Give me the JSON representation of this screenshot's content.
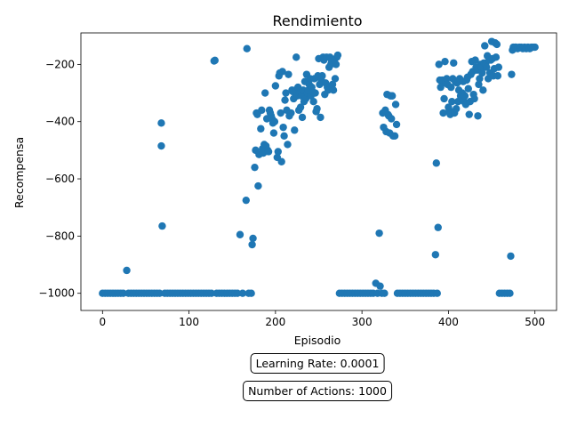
{
  "chart_data": {
    "type": "scatter",
    "title": "Rendimiento",
    "xlabel": "Episodio",
    "ylabel": "Recompensa",
    "xlim": [
      -25,
      525
    ],
    "ylim": [
      -1060,
      -90
    ],
    "xticks": [
      0,
      100,
      200,
      300,
      400,
      500
    ],
    "yticks": [
      -1000,
      -800,
      -600,
      -400,
      -200
    ],
    "grid": false,
    "color": "#1f77b4",
    "series": [
      {
        "name": "",
        "points": [
          [
            0,
            -1000
          ],
          [
            3,
            -1000
          ],
          [
            6,
            -1000
          ],
          [
            9,
            -1000
          ],
          [
            12,
            -1000
          ],
          [
            15,
            -1000
          ],
          [
            18,
            -1000
          ],
          [
            21,
            -1000
          ],
          [
            24,
            -1000
          ],
          [
            28,
            -920
          ],
          [
            30,
            -1000
          ],
          [
            33,
            -1000
          ],
          [
            36,
            -1000
          ],
          [
            39,
            -1000
          ],
          [
            42,
            -1000
          ],
          [
            45,
            -1000
          ],
          [
            48,
            -1000
          ],
          [
            51,
            -1000
          ],
          [
            54,
            -1000
          ],
          [
            57,
            -1000
          ],
          [
            60,
            -1000
          ],
          [
            63,
            -1000
          ],
          [
            66,
            -1000
          ],
          [
            68,
            -405
          ],
          [
            68,
            -485
          ],
          [
            69,
            -765
          ],
          [
            72,
            -1000
          ],
          [
            75,
            -1000
          ],
          [
            78,
            -1000
          ],
          [
            81,
            -1000
          ],
          [
            84,
            -1000
          ],
          [
            87,
            -1000
          ],
          [
            90,
            -1000
          ],
          [
            93,
            -1000
          ],
          [
            96,
            -1000
          ],
          [
            99,
            -1000
          ],
          [
            102,
            -1000
          ],
          [
            105,
            -1000
          ],
          [
            108,
            -1000
          ],
          [
            111,
            -1000
          ],
          [
            114,
            -1000
          ],
          [
            117,
            -1000
          ],
          [
            120,
            -1000
          ],
          [
            123,
            -1000
          ],
          [
            126,
            -1000
          ],
          [
            129,
            -188
          ],
          [
            130,
            -186
          ],
          [
            132,
            -1000
          ],
          [
            135,
            -1000
          ],
          [
            138,
            -1000
          ],
          [
            141,
            -1000
          ],
          [
            144,
            -1000
          ],
          [
            147,
            -1000
          ],
          [
            150,
            -1000
          ],
          [
            153,
            -1000
          ],
          [
            156,
            -1000
          ],
          [
            159,
            -795
          ],
          [
            162,
            -1000
          ],
          [
            166,
            -675
          ],
          [
            167,
            -145
          ],
          [
            169,
            -1000
          ],
          [
            172,
            -1000
          ],
          [
            173,
            -830
          ],
          [
            174,
            -808
          ],
          [
            176,
            -560
          ],
          [
            177,
            -500
          ],
          [
            178,
            -370
          ],
          [
            179,
            -375
          ],
          [
            180,
            -625
          ],
          [
            181,
            -515
          ],
          [
            183,
            -425
          ],
          [
            184,
            -360
          ],
          [
            185,
            -495
          ],
          [
            186,
            -510
          ],
          [
            187,
            -480
          ],
          [
            188,
            -300
          ],
          [
            189,
            -485
          ],
          [
            190,
            -390
          ],
          [
            191,
            -500
          ],
          [
            192,
            -505
          ],
          [
            193,
            -360
          ],
          [
            194,
            -370
          ],
          [
            195,
            -380
          ],
          [
            196,
            -390
          ],
          [
            197,
            -405
          ],
          [
            198,
            -440
          ],
          [
            199,
            -400
          ],
          [
            200,
            -275
          ],
          [
            202,
            -525
          ],
          [
            203,
            -505
          ],
          [
            204,
            -240
          ],
          [
            205,
            -230
          ],
          [
            206,
            -370
          ],
          [
            207,
            -540
          ],
          [
            208,
            -225
          ],
          [
            209,
            -420
          ],
          [
            210,
            -450
          ],
          [
            211,
            -325
          ],
          [
            212,
            -300
          ],
          [
            213,
            -360
          ],
          [
            214,
            -480
          ],
          [
            215,
            -235
          ],
          [
            216,
            -380
          ],
          [
            218,
            -370
          ],
          [
            219,
            -290
          ],
          [
            220,
            -295
          ],
          [
            221,
            -320
          ],
          [
            222,
            -430
          ],
          [
            223,
            -290
          ],
          [
            224,
            -175
          ],
          [
            225,
            -310
          ],
          [
            226,
            -280
          ],
          [
            227,
            -360
          ],
          [
            228,
            -300
          ],
          [
            229,
            -350
          ],
          [
            230,
            -310
          ],
          [
            231,
            -385
          ],
          [
            232,
            -290
          ],
          [
            233,
            -330
          ],
          [
            234,
            -260
          ],
          [
            235,
            -320
          ],
          [
            236,
            -235
          ],
          [
            237,
            -300
          ],
          [
            238,
            -290
          ],
          [
            239,
            -270
          ],
          [
            240,
            -250
          ],
          [
            241,
            -310
          ],
          [
            242,
            -280
          ],
          [
            243,
            -295
          ],
          [
            244,
            -330
          ],
          [
            245,
            -250
          ],
          [
            246,
            -300
          ],
          [
            247,
            -365
          ],
          [
            248,
            -355
          ],
          [
            249,
            -240
          ],
          [
            250,
            -180
          ],
          [
            251,
            -270
          ],
          [
            252,
            -385
          ],
          [
            253,
            -255
          ],
          [
            254,
            -240
          ],
          [
            255,
            -175
          ],
          [
            256,
            -185
          ],
          [
            257,
            -305
          ],
          [
            258,
            -265
          ],
          [
            259,
            -175
          ],
          [
            260,
            -280
          ],
          [
            261,
            -290
          ],
          [
            262,
            -210
          ],
          [
            263,
            -175
          ],
          [
            264,
            -200
          ],
          [
            265,
            -190
          ],
          [
            266,
            -270
          ],
          [
            267,
            -290
          ],
          [
            268,
            -185
          ],
          [
            269,
            -250
          ],
          [
            270,
            -200
          ],
          [
            271,
            -175
          ],
          [
            272,
            -168
          ],
          [
            274,
            -1000
          ],
          [
            277,
            -1000
          ],
          [
            280,
            -1000
          ],
          [
            283,
            -1000
          ],
          [
            286,
            -1000
          ],
          [
            289,
            -1000
          ],
          [
            292,
            -1000
          ],
          [
            295,
            -1000
          ],
          [
            298,
            -1000
          ],
          [
            301,
            -1000
          ],
          [
            304,
            -1000
          ],
          [
            307,
            -1000
          ],
          [
            310,
            -1000
          ],
          [
            313,
            -1000
          ],
          [
            316,
            -965
          ],
          [
            318,
            -1000
          ],
          [
            320,
            -790
          ],
          [
            321,
            -975
          ],
          [
            323,
            -1000
          ],
          [
            324,
            -370
          ],
          [
            325,
            -420
          ],
          [
            326,
            -1000
          ],
          [
            327,
            -360
          ],
          [
            328,
            -435
          ],
          [
            329,
            -305
          ],
          [
            330,
            -375
          ],
          [
            331,
            -380
          ],
          [
            332,
            -440
          ],
          [
            333,
            -310
          ],
          [
            334,
            -390
          ],
          [
            335,
            -310
          ],
          [
            336,
            -450
          ],
          [
            338,
            -450
          ],
          [
            339,
            -340
          ],
          [
            340,
            -410
          ],
          [
            341,
            -1000
          ],
          [
            344,
            -1000
          ],
          [
            347,
            -1000
          ],
          [
            350,
            -1000
          ],
          [
            353,
            -1000
          ],
          [
            356,
            -1000
          ],
          [
            359,
            -1000
          ],
          [
            362,
            -1000
          ],
          [
            365,
            -1000
          ],
          [
            368,
            -1000
          ],
          [
            371,
            -1000
          ],
          [
            374,
            -1000
          ],
          [
            377,
            -1000
          ],
          [
            380,
            -1000
          ],
          [
            383,
            -1000
          ],
          [
            385,
            -865
          ],
          [
            386,
            -545
          ],
          [
            387,
            -1000
          ],
          [
            388,
            -770
          ],
          [
            389,
            -200
          ],
          [
            390,
            -255
          ],
          [
            391,
            -280
          ],
          [
            392,
            -260
          ],
          [
            393,
            -255
          ],
          [
            394,
            -370
          ],
          [
            395,
            -320
          ],
          [
            396,
            -190
          ],
          [
            397,
            -265
          ],
          [
            398,
            -250
          ],
          [
            399,
            -270
          ],
          [
            400,
            -350
          ],
          [
            401,
            -360
          ],
          [
            402,
            -375
          ],
          [
            403,
            -280
          ],
          [
            404,
            -330
          ],
          [
            405,
            -250
          ],
          [
            406,
            -195
          ],
          [
            407,
            -370
          ],
          [
            408,
            -260
          ],
          [
            409,
            -355
          ],
          [
            410,
            -265
          ],
          [
            411,
            -330
          ],
          [
            412,
            -290
          ],
          [
            413,
            -250
          ],
          [
            414,
            -310
          ],
          [
            415,
            -320
          ],
          [
            416,
            -300
          ],
          [
            417,
            -260
          ],
          [
            418,
            -330
          ],
          [
            419,
            -310
          ],
          [
            420,
            -340
          ],
          [
            421,
            -255
          ],
          [
            422,
            -245
          ],
          [
            423,
            -285
          ],
          [
            424,
            -375
          ],
          [
            425,
            -330
          ],
          [
            426,
            -235
          ],
          [
            427,
            -190
          ],
          [
            428,
            -225
          ],
          [
            429,
            -305
          ],
          [
            430,
            -320
          ],
          [
            431,
            -185
          ],
          [
            432,
            -210
          ],
          [
            433,
            -220
          ],
          [
            434,
            -380
          ],
          [
            435,
            -270
          ],
          [
            436,
            -250
          ],
          [
            437,
            -200
          ],
          [
            438,
            -210
          ],
          [
            439,
            -230
          ],
          [
            440,
            -290
          ],
          [
            441,
            -195
          ],
          [
            442,
            -135
          ],
          [
            443,
            -200
          ],
          [
            444,
            -210
          ],
          [
            445,
            -170
          ],
          [
            446,
            -250
          ],
          [
            447,
            -185
          ],
          [
            448,
            -230
          ],
          [
            449,
            -185
          ],
          [
            450,
            -120
          ],
          [
            451,
            -180
          ],
          [
            452,
            -240
          ],
          [
            453,
            -215
          ],
          [
            454,
            -125
          ],
          [
            455,
            -175
          ],
          [
            456,
            -130
          ],
          [
            457,
            -240
          ],
          [
            458,
            -210
          ],
          [
            459,
            -1000
          ],
          [
            462,
            -1000
          ],
          [
            465,
            -1000
          ],
          [
            468,
            -1000
          ],
          [
            471,
            -1000
          ],
          [
            472,
            -870
          ],
          [
            473,
            -235
          ],
          [
            474,
            -150
          ],
          [
            475,
            -140
          ],
          [
            476,
            -145
          ],
          [
            477,
            -140
          ],
          [
            478,
            -140
          ],
          [
            480,
            -145
          ],
          [
            482,
            -140
          ],
          [
            484,
            -140
          ],
          [
            486,
            -145
          ],
          [
            488,
            -140
          ],
          [
            490,
            -145
          ],
          [
            492,
            -140
          ],
          [
            494,
            -145
          ],
          [
            496,
            -140
          ],
          [
            498,
            -140
          ],
          [
            500,
            -140
          ]
        ]
      }
    ]
  },
  "info": {
    "learning_rate": "Learning Rate: 0.0001",
    "num_actions": "Number of Actions: 1000"
  }
}
